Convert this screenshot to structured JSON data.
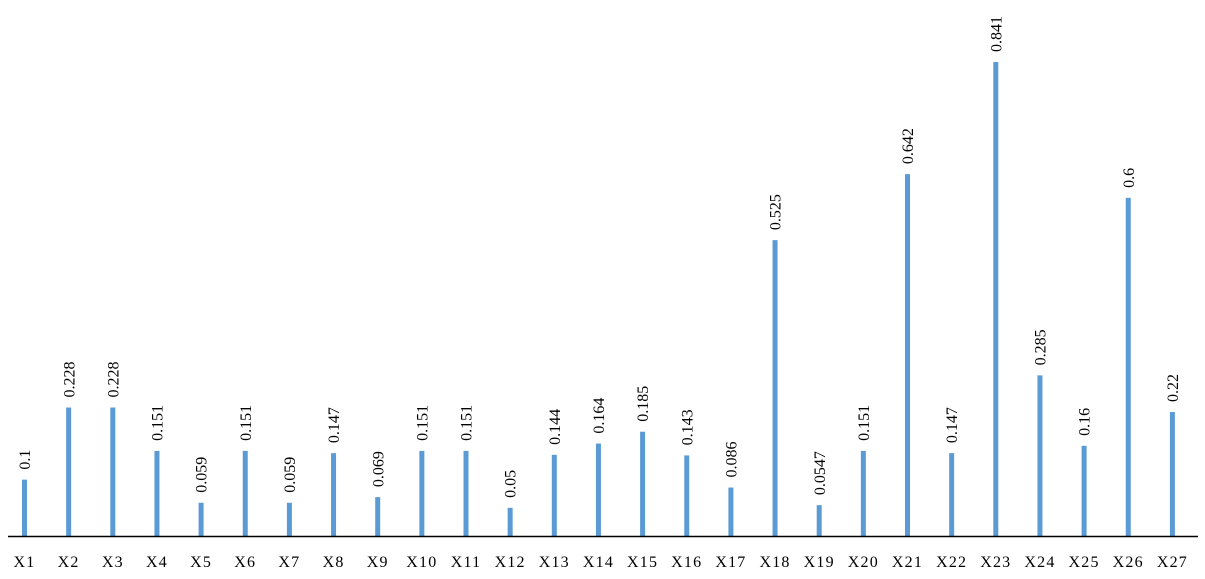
{
  "chart_data": {
    "type": "bar",
    "title": "",
    "xlabel": "",
    "ylabel": "",
    "categories": [
      "X1",
      "X2",
      "X3",
      "X4",
      "X5",
      "X6",
      "X7",
      "X8",
      "X9",
      "X10",
      "X11",
      "X12",
      "X13",
      "X14",
      "X15",
      "X16",
      "X17",
      "X18",
      "X19",
      "X20",
      "X21",
      "X22",
      "X23",
      "X24",
      "X25",
      "X26",
      "X27"
    ],
    "values": [
      0.1,
      0.228,
      0.228,
      0.151,
      0.059,
      0.151,
      0.059,
      0.147,
      0.069,
      0.151,
      0.151,
      0.05,
      0.144,
      0.164,
      0.185,
      0.143,
      0.086,
      0.525,
      0.0547,
      0.151,
      0.642,
      0.147,
      0.841,
      0.285,
      0.16,
      0.6,
      0.22
    ],
    "value_labels": [
      "0.1",
      "0.228",
      "0.228",
      "0.151",
      "0.059",
      "0.151",
      "0.059",
      "0.147",
      "0.069",
      "0.151",
      "0.151",
      "0.05",
      "0.144",
      "0.164",
      "0.185",
      "0.143",
      "0.086",
      "0.525",
      "0.0547",
      "0.151",
      "0.642",
      "0.147",
      "0.841",
      "0.285",
      "0.16",
      "0.6",
      "0.22"
    ],
    "ylim": [
      0,
      0.841
    ],
    "grid": false,
    "legend": "none",
    "y_axis_shown": false,
    "data_labels_rotated": true,
    "colors": {
      "bar": "#5B9BD5",
      "axis": "#000000",
      "text": "#000000"
    }
  }
}
